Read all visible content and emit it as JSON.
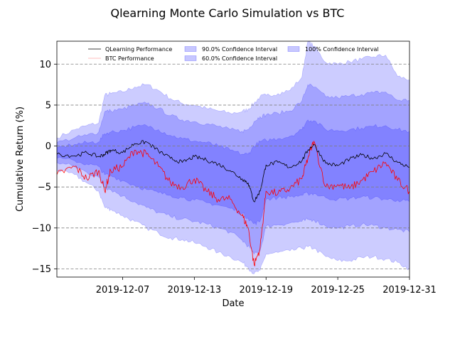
{
  "chart_data": {
    "type": "line",
    "title": "Qlearning Monte Carlo Simulation vs BTC",
    "xlabel": "Date",
    "ylabel": "Cumulative Return (%)",
    "xlim": [
      "2019-12-01T12:00",
      "2019-12-31"
    ],
    "ylim": [
      -16,
      12.8
    ],
    "x_ticks": [
      "2019-12-07",
      "2019-12-13",
      "2019-12-19",
      "2019-12-25",
      "2019-12-31"
    ],
    "y_ticks": [
      -15,
      -10,
      -5,
      0,
      5,
      10
    ],
    "grid": "horizontal dashed",
    "legend_position": "top",
    "legend": [
      {
        "label": "QLearning Performance",
        "kind": "line",
        "color": "#000000"
      },
      {
        "label": "BTC Performance",
        "kind": "line",
        "color": "#ff0000"
      },
      {
        "label": "90.0% Confidence Interval",
        "kind": "band",
        "color": "#0000ff"
      },
      {
        "label": "60.0% Confidence Interval",
        "kind": "band",
        "color": "#0000ff"
      },
      {
        "label": "100% Confidence Interval",
        "kind": "band",
        "color": "#0000ff"
      }
    ],
    "x": [
      "2019-12-01T12:00",
      "2019-12-03",
      "2019-12-04",
      "2019-12-05",
      "2019-12-05T12:00",
      "2019-12-06",
      "2019-12-07",
      "2019-12-08",
      "2019-12-09",
      "2019-12-10",
      "2019-12-11",
      "2019-12-12",
      "2019-12-13",
      "2019-12-14",
      "2019-12-15",
      "2019-12-16",
      "2019-12-17",
      "2019-12-17T12:00",
      "2019-12-18",
      "2019-12-18T12:00",
      "2019-12-19",
      "2019-12-20",
      "2019-12-21",
      "2019-12-22",
      "2019-12-22T12:00",
      "2019-12-23",
      "2019-12-24",
      "2019-12-25",
      "2019-12-26",
      "2019-12-27",
      "2019-12-28",
      "2019-12-29",
      "2019-12-30",
      "2019-12-31"
    ],
    "series": [
      {
        "name": "QLearning Performance",
        "color": "#000000",
        "values": [
          -1,
          -1.2,
          -0.8,
          -1.3,
          -1.0,
          -0.5,
          -0.8,
          0.3,
          0.5,
          -0.6,
          -1.5,
          -2.0,
          -1.3,
          -1.7,
          -2.2,
          -3.0,
          -4.0,
          -4.5,
          -6.8,
          -5.5,
          -2.3,
          -2.0,
          -2.6,
          -1.8,
          -0.5,
          0.2,
          -2.1,
          -2.4,
          -1.6,
          -1.1,
          -1.5,
          -0.9,
          -2.0,
          -2.6
        ]
      },
      {
        "name": "BTC Performance",
        "color": "#ff0000",
        "values": [
          -3.5,
          -2.5,
          -4.0,
          -3.0,
          -5.5,
          -3.0,
          -2.5,
          -0.5,
          -1.0,
          -2.5,
          -4.5,
          -5.0,
          -4.0,
          -5.5,
          -6.5,
          -6.5,
          -8.5,
          -10.0,
          -14.5,
          -12.5,
          -5.5,
          -5.8,
          -5.2,
          -4.0,
          -1.5,
          0.6,
          -5.0,
          -4.7,
          -5.2,
          -4.2,
          -3.1,
          -2.0,
          -4.2,
          -5.5
        ]
      },
      {
        "name": "100% Confidence Interval",
        "upper": [
          1.0,
          2.0,
          2.5,
          2.8,
          6.2,
          6.4,
          6.6,
          7.2,
          7.5,
          6.8,
          5.8,
          5.2,
          5.0,
          4.6,
          4.3,
          4.0,
          4.2,
          4.5,
          5.2,
          6.0,
          6.2,
          6.4,
          6.8,
          8.4,
          12.8,
          12.2,
          10.2,
          10.0,
          10.3,
          10.6,
          10.9,
          11.1,
          8.5,
          8.1
        ],
        "lower": [
          -3.0,
          -3.5,
          -4.5,
          -5.5,
          -7.5,
          -7.7,
          -8.5,
          -9.2,
          -10.0,
          -10.6,
          -11.2,
          -11.4,
          -11.8,
          -12.3,
          -13.0,
          -13.5,
          -14.2,
          -14.8,
          -15.6,
          -15.2,
          -13.2,
          -13.0,
          -12.8,
          -12.5,
          -12.3,
          -12.5,
          -13.5,
          -14.0,
          -14.0,
          -13.6,
          -13.5,
          -13.8,
          -14.2,
          -15.0
        ]
      },
      {
        "name": "90.0% Confidence Interval",
        "upper": [
          0.4,
          1.0,
          1.3,
          1.7,
          4.2,
          4.3,
          4.5,
          5.0,
          5.2,
          4.6,
          3.7,
          3.2,
          3.0,
          2.7,
          2.4,
          2.0,
          1.8,
          2.0,
          3.0,
          3.6,
          3.8,
          4.0,
          4.3,
          5.5,
          7.5,
          7.2,
          6.0,
          5.9,
          6.1,
          6.3,
          6.5,
          6.6,
          5.6,
          5.6
        ],
        "lower": [
          -2.0,
          -2.5,
          -3.2,
          -3.8,
          -5.0,
          -5.3,
          -6.1,
          -6.8,
          -7.5,
          -8.1,
          -8.6,
          -8.9,
          -9.2,
          -9.5,
          -10.0,
          -10.5,
          -11.5,
          -12.2,
          -13.2,
          -12.8,
          -9.8,
          -9.6,
          -9.4,
          -9.2,
          -9.0,
          -9.0,
          -9.8,
          -10.0,
          -9.8,
          -9.6,
          -9.7,
          -10.0,
          -10.2,
          -10.5
        ]
      },
      {
        "name": "60.0% Confidence Interval",
        "upper": [
          -0.2,
          0.2,
          0.4,
          0.5,
          1.5,
          1.7,
          1.9,
          2.3,
          2.5,
          2.0,
          1.3,
          0.9,
          0.6,
          0.4,
          0.0,
          -0.5,
          -1.0,
          -1.0,
          0.0,
          0.5,
          0.7,
          0.9,
          1.2,
          2.0,
          3.2,
          3.1,
          2.0,
          1.9,
          2.0,
          2.2,
          2.4,
          2.5,
          2.0,
          1.8
        ],
        "lower": [
          -1.5,
          -1.8,
          -2.2,
          -2.5,
          -3.5,
          -3.6,
          -4.2,
          -4.8,
          -5.3,
          -5.7,
          -6.0,
          -6.3,
          -6.6,
          -6.9,
          -7.2,
          -7.6,
          -8.2,
          -8.8,
          -9.5,
          -9.2,
          -6.5,
          -6.3,
          -6.2,
          -6.0,
          -5.8,
          -5.8,
          -6.3,
          -6.5,
          -6.4,
          -6.2,
          -6.3,
          -6.5,
          -6.6,
          -6.8
        ]
      }
    ]
  }
}
